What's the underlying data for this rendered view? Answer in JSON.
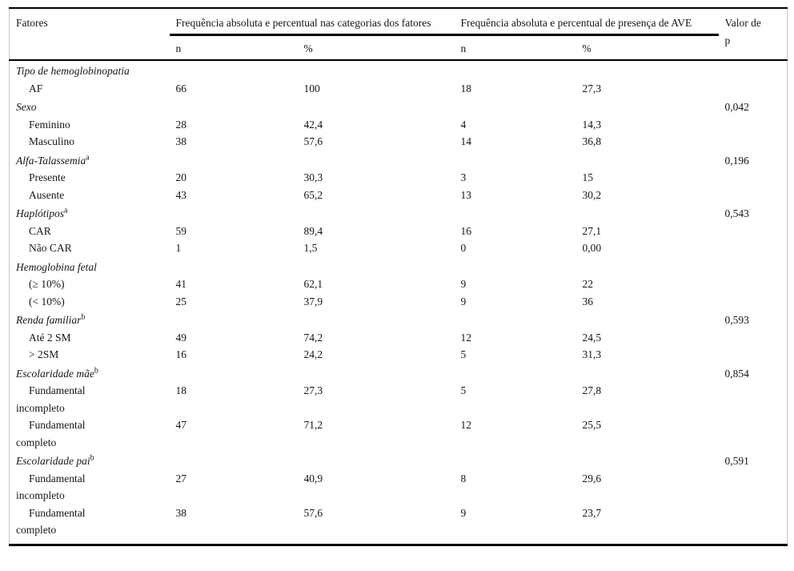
{
  "table": {
    "header": {
      "factors_label": "Fatores",
      "group1_label": "Frequência absoluta e percentual nas categorias dos fatores",
      "group2_label": "Frequência absoluta e percentual de presença de AVE",
      "p_label": "Valor de p",
      "sub_n1": "n",
      "sub_pct1": "%",
      "sub_n2": "n",
      "sub_pct2": "%"
    },
    "sections": [
      {
        "label": "Tipo de hemoglobinopatia",
        "sup": "",
        "p": "",
        "rows": [
          {
            "label": "AF",
            "n1": "66",
            "pct1": "100",
            "n2": "18",
            "pct2": "27,3"
          }
        ]
      },
      {
        "label": "Sexo",
        "sup": "",
        "p": "0,042",
        "rows": [
          {
            "label": "Feminino",
            "n1": "28",
            "pct1": "42,4",
            "n2": "4",
            "pct2": "14,3"
          },
          {
            "label": "Masculino",
            "n1": "38",
            "pct1": "57,6",
            "n2": "14",
            "pct2": "36,8"
          }
        ]
      },
      {
        "label": "Alfa-Talassemia",
        "sup": "a",
        "p": "0,196",
        "rows": [
          {
            "label": "Presente",
            "n1": "20",
            "pct1": "30,3",
            "n2": "3",
            "pct2": "15"
          },
          {
            "label": "Ausente",
            "n1": "43",
            "pct1": "65,2",
            "n2": "13",
            "pct2": "30,2"
          }
        ]
      },
      {
        "label": "Haplótipos",
        "sup": "a",
        "p": "0,543",
        "rows": [
          {
            "label": "CAR",
            "n1": "59",
            "pct1": "89,4",
            "n2": "16",
            "pct2": "27,1"
          },
          {
            "label": "Não CAR",
            "n1": "1",
            "pct1": "1,5",
            "n2": "0",
            "pct2": "0,00"
          }
        ]
      },
      {
        "label": "Hemoglobina fetal",
        "sup": "",
        "p": "",
        "rows": [
          {
            "label": "(≥ 10%)",
            "n1": "41",
            "pct1": "62,1",
            "n2": "9",
            "pct2": "22"
          },
          {
            "label": "(< 10%)",
            "n1": "25",
            "pct1": "37,9",
            "n2": "9",
            "pct2": "36"
          }
        ]
      },
      {
        "label": "Renda familiar",
        "sup": "b",
        "p": "0,593",
        "rows": [
          {
            "label": "Até 2 SM",
            "n1": "49",
            "pct1": "74,2",
            "n2": "12",
            "pct2": "24,5"
          },
          {
            "label": "> 2SM",
            "n1": "16",
            "pct1": "24,2",
            "n2": "5",
            "pct2": "31,3"
          }
        ]
      },
      {
        "label": "Escolaridade mãe",
        "sup": "b",
        "p": "0,854",
        "rows": [
          {
            "label": "Fundamental incompleto",
            "n1": "18",
            "pct1": "27,3",
            "n2": "5",
            "pct2": "27,8"
          },
          {
            "label": "Fundamental completo",
            "n1": "47",
            "pct1": "71,2",
            "n2": "12",
            "pct2": "25,5"
          }
        ]
      },
      {
        "label": "Escolaridade pai",
        "sup": "b",
        "p": "0,591",
        "rows": [
          {
            "label": "Fundamental incompleto",
            "n1": "27",
            "pct1": "40,9",
            "n2": "8",
            "pct2": "29,6"
          },
          {
            "label": "Fundamental completo",
            "n1": "38",
            "pct1": "57,6",
            "n2": "9",
            "pct2": "23,7"
          }
        ]
      }
    ]
  },
  "colors": {
    "text": "#161616",
    "rules": "#000000",
    "side_border": "#c8c8c8",
    "background": "#ffffff"
  }
}
